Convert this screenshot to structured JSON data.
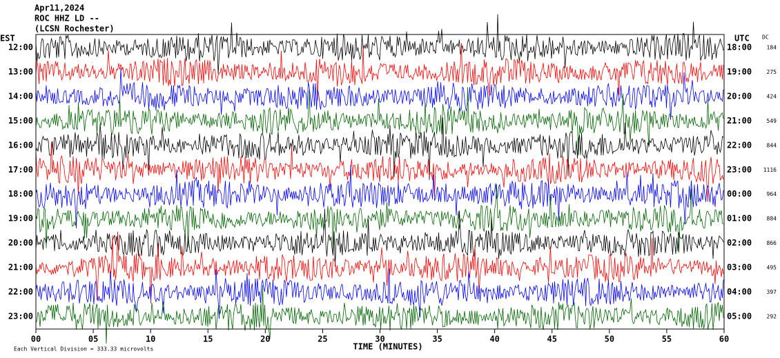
{
  "header": {
    "date": "Apr11,2024",
    "station": "ROC HHZ LD --",
    "network": "(LCSN Rochester)"
  },
  "left_axis": {
    "label": "EST",
    "times": [
      "12:00",
      "13:00",
      "14:00",
      "15:00",
      "16:00",
      "17:00",
      "18:00",
      "19:00",
      "20:00",
      "21:00",
      "22:00",
      "23:00"
    ]
  },
  "right_axis": {
    "label": "UTC",
    "times": [
      "18:00",
      "19:00",
      "20:00",
      "21:00",
      "22:00",
      "23:00",
      "00:00",
      "01:00",
      "02:00",
      "03:00",
      "04:00",
      "05:00"
    ],
    "dc_label": "DC",
    "dc_values": [
      "184",
      "275",
      "424",
      "549",
      "844",
      "1116",
      "964",
      "884",
      "866",
      "495",
      "397",
      "292"
    ]
  },
  "x_axis": {
    "labels": [
      "00",
      "05",
      "10",
      "15",
      "20",
      "25",
      "30",
      "35",
      "40",
      "45",
      "50",
      "55",
      "60"
    ],
    "title": "TIME (MINUTES)"
  },
  "footer": "Each Vertical Division =  333.33 microvolts"
}
